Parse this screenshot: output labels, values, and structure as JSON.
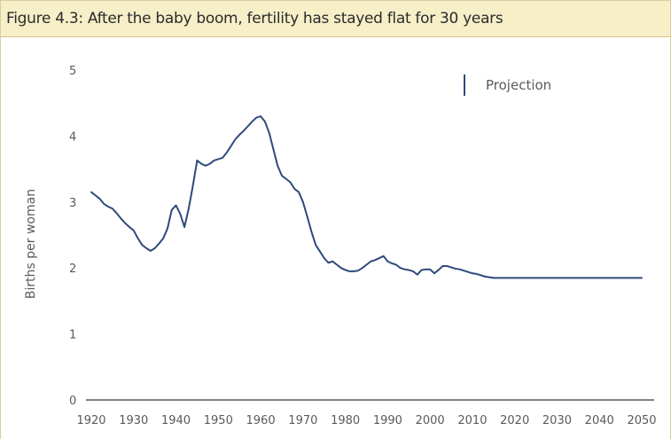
{
  "figure": {
    "title": "Figure 4.3: After the baby boom, fertility has stayed flat for 30 years"
  },
  "chart_data": {
    "type": "line",
    "title": "Figure 4.3: After the baby boom, fertility has stayed flat for 30 years",
    "xlabel": "",
    "ylabel": "Births per woman",
    "xlim": [
      1920,
      2050
    ],
    "ylim": [
      0,
      5
    ],
    "x_ticks": [
      "1920",
      "1930",
      "1940",
      "1950",
      "1960",
      "1970",
      "1980",
      "1990",
      "2000",
      "2010",
      "2020",
      "2030",
      "2040",
      "2050"
    ],
    "y_ticks": [
      "0",
      "1",
      "2",
      "3",
      "4",
      "5"
    ],
    "grid": false,
    "legend": {
      "position": "top-right",
      "label": "Projection"
    },
    "colors": {
      "line": "#2e4a7a",
      "axis": "#5a5a5a",
      "title_bg": "#f6efc8"
    },
    "series": [
      {
        "values": [
          [
            1920,
            3.15
          ],
          [
            1921,
            3.1
          ],
          [
            1922,
            3.05
          ],
          [
            1923,
            2.97
          ],
          [
            1924,
            2.93
          ],
          [
            1925,
            2.9
          ],
          [
            1926,
            2.83
          ],
          [
            1927,
            2.75
          ],
          [
            1928,
            2.68
          ],
          [
            1929,
            2.62
          ],
          [
            1930,
            2.57
          ],
          [
            1931,
            2.45
          ],
          [
            1932,
            2.35
          ],
          [
            1933,
            2.3
          ],
          [
            1934,
            2.26
          ],
          [
            1935,
            2.3
          ],
          [
            1936,
            2.37
          ],
          [
            1937,
            2.45
          ],
          [
            1938,
            2.6
          ],
          [
            1939,
            2.88
          ],
          [
            1940,
            2.95
          ],
          [
            1941,
            2.82
          ],
          [
            1942,
            2.62
          ],
          [
            1943,
            2.9
          ],
          [
            1944,
            3.25
          ],
          [
            1945,
            3.63
          ],
          [
            1946,
            3.58
          ],
          [
            1947,
            3.55
          ],
          [
            1948,
            3.58
          ],
          [
            1949,
            3.63
          ],
          [
            1950,
            3.65
          ],
          [
            1951,
            3.67
          ],
          [
            1952,
            3.75
          ],
          [
            1953,
            3.85
          ],
          [
            1954,
            3.95
          ],
          [
            1955,
            4.02
          ],
          [
            1956,
            4.08
          ],
          [
            1957,
            4.15
          ],
          [
            1958,
            4.22
          ],
          [
            1959,
            4.28
          ],
          [
            1960,
            4.3
          ],
          [
            1961,
            4.22
          ],
          [
            1962,
            4.05
          ],
          [
            1963,
            3.8
          ],
          [
            1964,
            3.55
          ],
          [
            1965,
            3.4
          ],
          [
            1966,
            3.35
          ],
          [
            1967,
            3.3
          ],
          [
            1968,
            3.2
          ],
          [
            1969,
            3.15
          ],
          [
            1970,
            3.0
          ],
          [
            1971,
            2.78
          ],
          [
            1972,
            2.55
          ],
          [
            1973,
            2.35
          ],
          [
            1974,
            2.25
          ],
          [
            1975,
            2.15
          ],
          [
            1976,
            2.08
          ],
          [
            1977,
            2.1
          ],
          [
            1978,
            2.05
          ],
          [
            1979,
            2.0
          ],
          [
            1980,
            1.97
          ],
          [
            1981,
            1.95
          ],
          [
            1982,
            1.95
          ],
          [
            1983,
            1.96
          ],
          [
            1984,
            2.0
          ],
          [
            1985,
            2.05
          ],
          [
            1986,
            2.1
          ],
          [
            1987,
            2.12
          ],
          [
            1988,
            2.15
          ],
          [
            1989,
            2.18
          ],
          [
            1990,
            2.1
          ],
          [
            1991,
            2.07
          ],
          [
            1992,
            2.05
          ],
          [
            1993,
            2.0
          ],
          [
            1994,
            1.98
          ],
          [
            1995,
            1.97
          ],
          [
            1996,
            1.95
          ],
          [
            1997,
            1.9
          ],
          [
            1998,
            1.97
          ],
          [
            1999,
            1.98
          ],
          [
            2000,
            1.98
          ],
          [
            2001,
            1.92
          ],
          [
            2002,
            1.97
          ],
          [
            2003,
            2.03
          ],
          [
            2004,
            2.03
          ],
          [
            2005,
            2.01
          ],
          [
            2006,
            1.99
          ],
          [
            2007,
            1.98
          ],
          [
            2008,
            1.96
          ],
          [
            2009,
            1.94
          ],
          [
            2010,
            1.92
          ],
          [
            2011,
            1.91
          ],
          [
            2012,
            1.89
          ],
          [
            2013,
            1.87
          ],
          [
            2014,
            1.86
          ],
          [
            2015,
            1.85
          ],
          [
            2020,
            1.85
          ],
          [
            2030,
            1.85
          ],
          [
            2040,
            1.85
          ],
          [
            2050,
            1.85
          ]
        ]
      }
    ]
  }
}
